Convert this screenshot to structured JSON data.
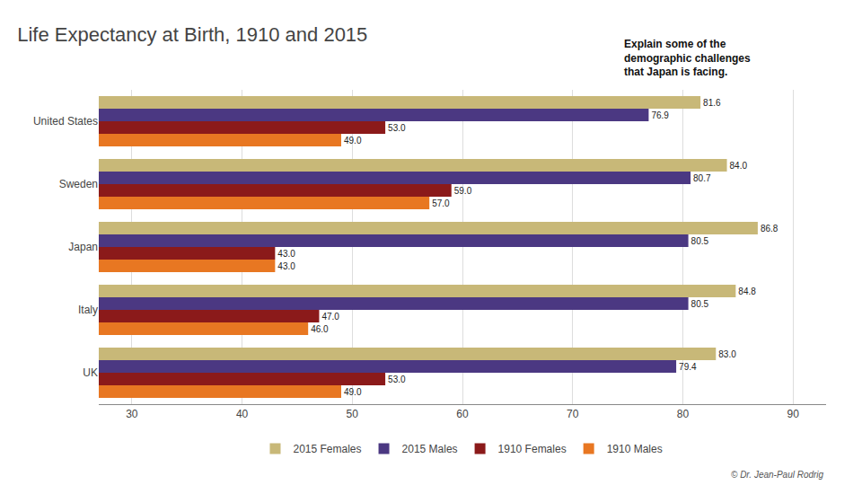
{
  "chart_data": {
    "type": "bar",
    "orientation": "horizontal",
    "title": "Life Expectancy at Birth, 1910 and 2015",
    "subtitle": "Explain some of the\ndemographic challenges\nthat Japan is facing.",
    "annotations": [
      "© Dr. Jean-Paul Rodrig"
    ],
    "categories": [
      "United States",
      "Sweden",
      "Japan",
      "Italy",
      "UK"
    ],
    "series": [
      {
        "name": "2015 Females",
        "color": "#C8B878",
        "values": [
          81.6,
          84.0,
          86.8,
          84.8,
          83.0
        ],
        "value_labels": [
          "81.6",
          "84.0",
          "86.8",
          "84.8",
          "83.0"
        ]
      },
      {
        "name": "2015 Males",
        "color": "#4B3882",
        "values": [
          76.9,
          80.7,
          80.5,
          80.5,
          79.4
        ],
        "value_labels": [
          "76.9",
          "80.7",
          "80.5",
          "80.5",
          "79.4"
        ]
      },
      {
        "name": "1910 Females",
        "color": "#8B1A1A",
        "values": [
          53.0,
          59.0,
          43.0,
          47.0,
          53.0
        ],
        "value_labels": [
          "53.0",
          "59.0",
          "43.0",
          "47.0",
          "53.0"
        ]
      },
      {
        "name": "1910 Males",
        "color": "#E87722",
        "values": [
          49.0,
          57.0,
          43.0,
          46.0,
          49.0
        ],
        "value_labels": [
          "49.0",
          "57.0",
          "43.0",
          "46.0",
          "49.0"
        ]
      }
    ],
    "xlim": [
      27,
      93
    ],
    "xticks": [
      30,
      40,
      50,
      60,
      70,
      80,
      90
    ],
    "grid": true,
    "legend": "bottom",
    "data_labels": true
  }
}
